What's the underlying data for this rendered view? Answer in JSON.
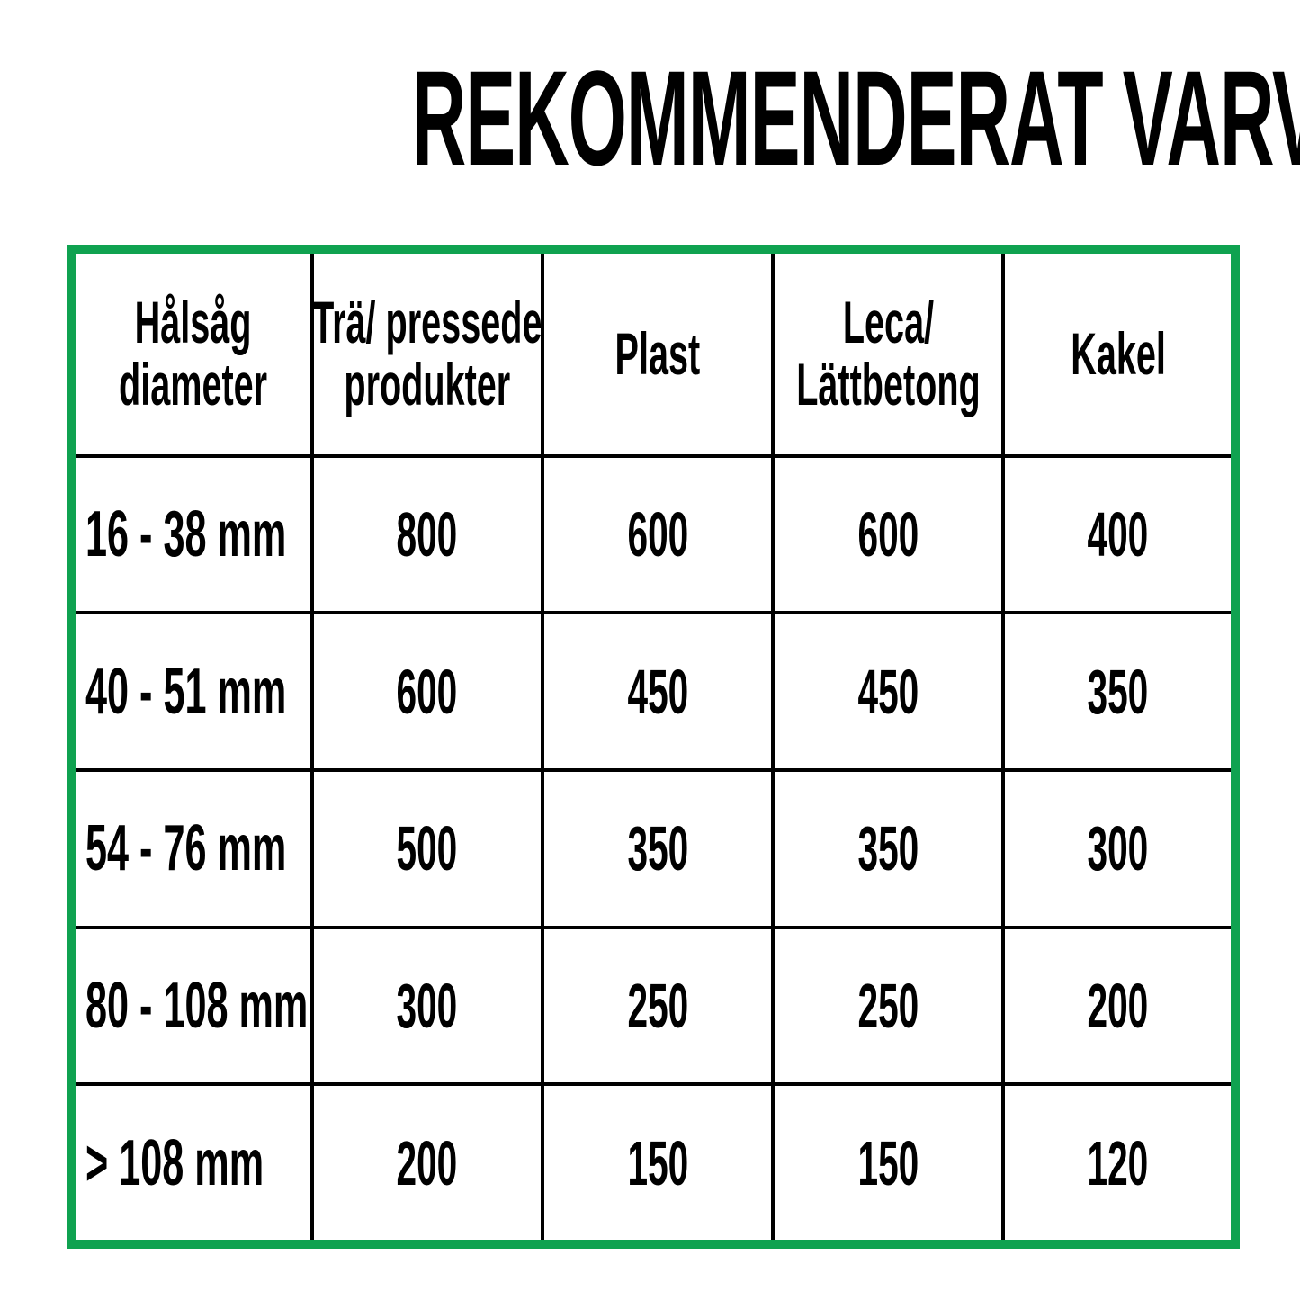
{
  "title": "REKOMMENDERAT VARVTAL",
  "colors": {
    "border_green": "#0FA250",
    "gridline_black": "#000000",
    "text_black": "#000000",
    "background_white": "#FFFFFF"
  },
  "table": {
    "columns": [
      "Hålsåg\ndiameter",
      "Trä/ pressede\nprodukter",
      "Plast",
      "Leca/\nLättbetong",
      "Kakel"
    ],
    "rows": [
      {
        "cells": [
          "16 - 38 mm",
          "800",
          "600",
          "600",
          "400"
        ]
      },
      {
        "cells": [
          "40 - 51 mm",
          "600",
          "450",
          "450",
          "350"
        ]
      },
      {
        "cells": [
          "54 - 76 mm",
          "500",
          "350",
          "350",
          "300"
        ]
      },
      {
        "cells": [
          "80 - 108 mm",
          "300",
          "250",
          "250",
          "200"
        ]
      },
      {
        "cells": [
          "> 108 mm",
          "200",
          "150",
          "150",
          "120"
        ]
      }
    ]
  },
  "chart_data": {
    "type": "table",
    "title": "REKOMMENDERAT VARVTAL",
    "columns": [
      "Hålsåg diameter",
      "Trä/ pressede produkter",
      "Plast",
      "Leca/ Lättbetong",
      "Kakel"
    ],
    "rows": [
      [
        "16 - 38 mm",
        800,
        600,
        600,
        400
      ],
      [
        "40 - 51 mm",
        600,
        450,
        450,
        350
      ],
      [
        "54 - 76 mm",
        500,
        350,
        350,
        300
      ],
      [
        "80 - 108 mm",
        300,
        250,
        250,
        200
      ],
      [
        "> 108 mm",
        200,
        150,
        150,
        120
      ]
    ],
    "notes": "Recommended RPM for hole saws by diameter and material; green outer border, black gridlines, white cells, bold condensed black text"
  }
}
